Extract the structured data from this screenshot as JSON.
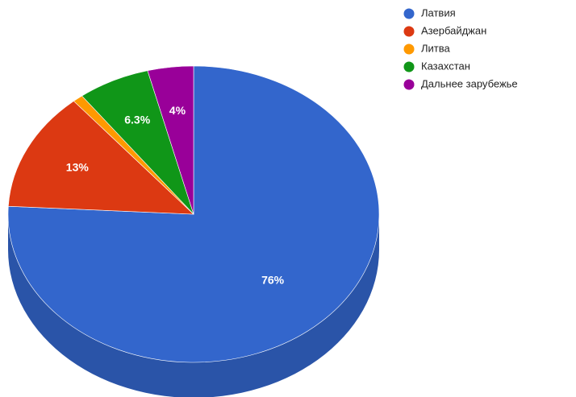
{
  "chart_data": {
    "type": "pie",
    "style": "3d",
    "title": "",
    "legend_position": "right",
    "slices": [
      {
        "label": "Латвия",
        "value": 76,
        "display": "76%",
        "color": "#3366cc",
        "side_color": "#2a54a8"
      },
      {
        "label": "Азербайджан",
        "value": 13,
        "display": "13%",
        "color": "#dc3912",
        "side_color": "#b32e0e"
      },
      {
        "label": "Литва",
        "value": 0.9,
        "display": "",
        "color": "#ff9900",
        "side_color": "#cc7a00"
      },
      {
        "label": "Казахстан",
        "value": 6.3,
        "display": "6.3%",
        "color": "#109618",
        "side_color": "#0c7412"
      },
      {
        "label": "Дальнее зарубежье",
        "value": 4,
        "display": "4%",
        "color": "#990099",
        "side_color": "#770077"
      }
    ]
  }
}
